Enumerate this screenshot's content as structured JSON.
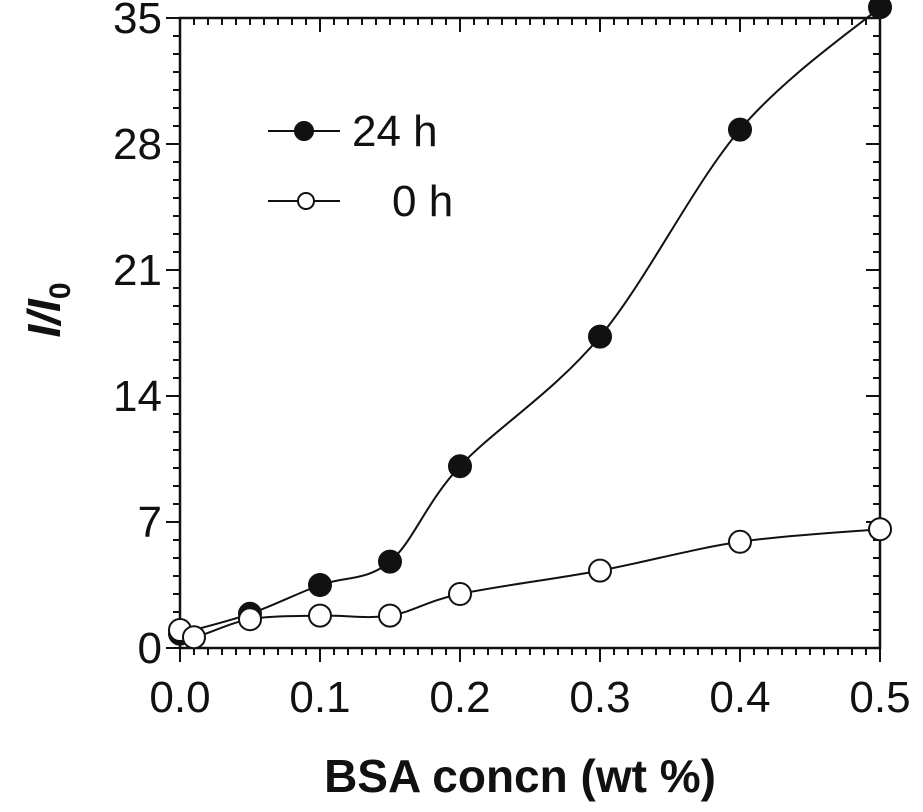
{
  "chart_data": {
    "type": "line",
    "xlabel": "BSA concn (wt %)",
    "ylabel_main": "I/I",
    "ylabel_sub": "0",
    "xlim": [
      0.0,
      0.5
    ],
    "ylim": [
      0,
      35
    ],
    "x_ticks": [
      0.0,
      0.1,
      0.2,
      0.3,
      0.4,
      0.5
    ],
    "x_tick_labels": [
      "0.0",
      "0.1",
      "0.2",
      "0.3",
      "0.4",
      "0.5"
    ],
    "y_ticks": [
      0,
      7,
      14,
      21,
      28,
      35
    ],
    "y_tick_labels": [
      "0",
      "7",
      "14",
      "21",
      "28",
      "35"
    ],
    "grid": false,
    "legend_position": "top-left",
    "series": [
      {
        "name": "24 h",
        "marker": "filled-circle",
        "color": "#111111",
        "x": [
          0.0,
          0.05,
          0.1,
          0.15,
          0.2,
          0.3,
          0.4,
          0.5
        ],
        "y": [
          0.8,
          1.9,
          3.5,
          4.8,
          10.1,
          17.3,
          28.8,
          35.6
        ]
      },
      {
        "name": "0 h",
        "marker": "open-circle",
        "color": "#111111",
        "x": [
          0.0,
          0.01,
          0.05,
          0.1,
          0.15,
          0.2,
          0.3,
          0.4,
          0.5
        ],
        "y": [
          1.0,
          0.6,
          1.6,
          1.8,
          1.8,
          3.0,
          4.3,
          5.9,
          6.6
        ]
      }
    ],
    "legend": {
      "entries": [
        "24 h",
        "0 h"
      ]
    }
  }
}
